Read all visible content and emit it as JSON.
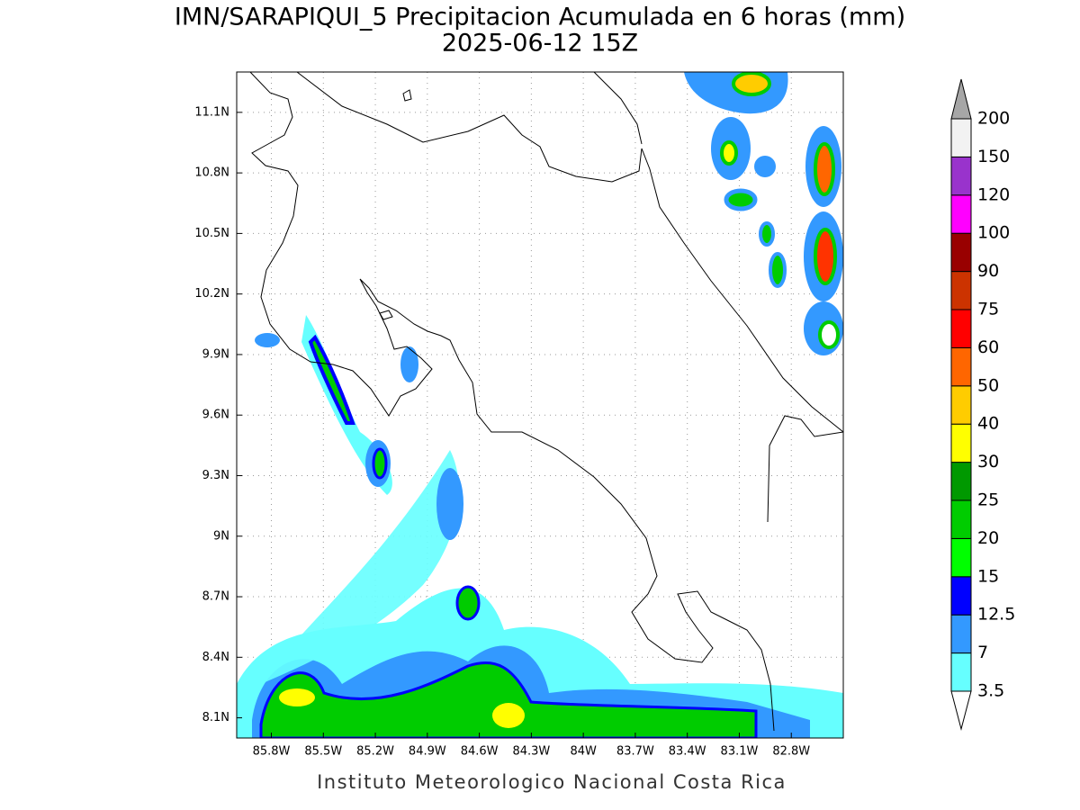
{
  "header": {
    "title": "IMN/SARAPIQUI_5 Precipitacion Acumulada en 6 horas (mm)",
    "subtitle": "2025-06-12 15Z"
  },
  "map": {
    "lonlim": [
      -86.0,
      -82.5
    ],
    "latlim": [
      8.0,
      11.3
    ],
    "grid": true,
    "lon_ticks": [
      {
        "value": -85.8,
        "label": "85.8W"
      },
      {
        "value": -85.5,
        "label": "85.5W"
      },
      {
        "value": -85.2,
        "label": "85.2W"
      },
      {
        "value": -84.9,
        "label": "84.9W"
      },
      {
        "value": -84.6,
        "label": "84.6W"
      },
      {
        "value": -84.3,
        "label": "84.3W"
      },
      {
        "value": -84.0,
        "label": "84W"
      },
      {
        "value": -83.7,
        "label": "83.7W"
      },
      {
        "value": -83.4,
        "label": "83.4W"
      },
      {
        "value": -83.1,
        "label": "83.1W"
      },
      {
        "value": -82.8,
        "label": "82.8W"
      }
    ],
    "lat_ticks": [
      {
        "value": 8.1,
        "label": "8.1N"
      },
      {
        "value": 8.4,
        "label": "8.4N"
      },
      {
        "value": 8.7,
        "label": "8.7N"
      },
      {
        "value": 9.0,
        "label": "9N"
      },
      {
        "value": 9.3,
        "label": "9.3N"
      },
      {
        "value": 9.6,
        "label": "9.6N"
      },
      {
        "value": 9.9,
        "label": "9.9N"
      },
      {
        "value": 10.2,
        "label": "10.2N"
      },
      {
        "value": 10.5,
        "label": "10.5N"
      },
      {
        "value": 10.8,
        "label": "10.8N"
      },
      {
        "value": 11.1,
        "label": "11.1N"
      }
    ]
  },
  "colorbar": {
    "levels": [
      3.5,
      7,
      12.5,
      15,
      20,
      25,
      30,
      40,
      50,
      60,
      75,
      90,
      100,
      120,
      150,
      200
    ],
    "colors": [
      "#ffffff",
      "#66ffff",
      "#3399ff",
      "#0000ff",
      "#00ff00",
      "#00cc00",
      "#009900",
      "#ffff00",
      "#ffcc00",
      "#ff6600",
      "#ff0000",
      "#cc3300",
      "#990000",
      "#ff00ff",
      "#9933cc",
      "#f2f2f2",
      "#a6a6a6"
    ]
  },
  "footer": {
    "text": "Instituto Meteorologico Nacional Costa Rica"
  }
}
